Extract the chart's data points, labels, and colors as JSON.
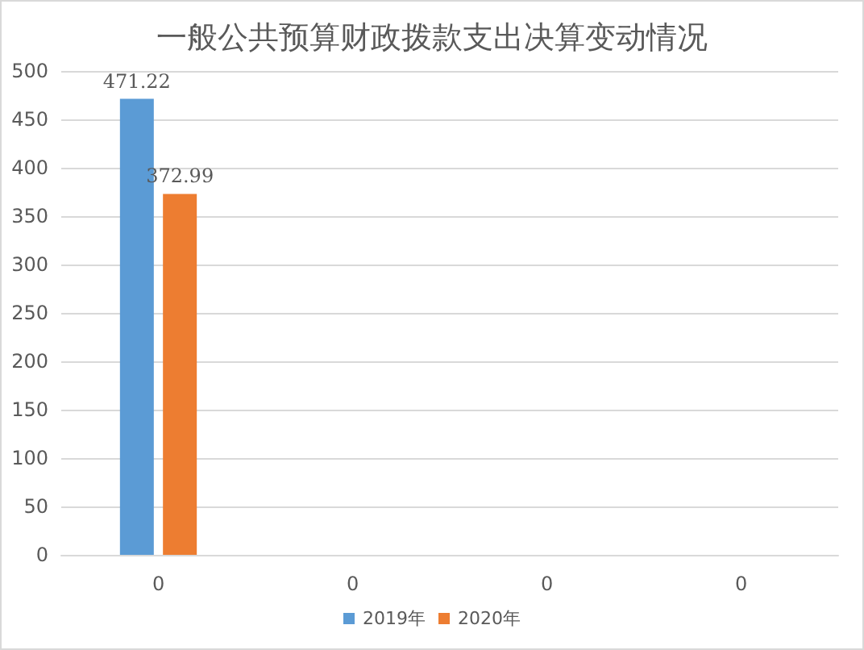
{
  "chart_data": {
    "type": "bar",
    "title": "一般公共预算财政拨款支出决算变动情况",
    "categories": [
      "0",
      "0",
      "0",
      "0"
    ],
    "series": [
      {
        "name": "2019年",
        "color": "#5b9bd5",
        "values": [
          471.22,
          null,
          null,
          null
        ],
        "value_labels": [
          "471.22",
          null,
          null,
          null
        ]
      },
      {
        "name": "2020年",
        "color": "#ed7d31",
        "values": [
          372.99,
          null,
          null,
          null
        ],
        "value_labels": [
          "372.99",
          null,
          null,
          null
        ]
      }
    ],
    "ylim": [
      0,
      500
    ],
    "yticks": [
      0,
      50,
      100,
      150,
      200,
      250,
      300,
      350,
      400,
      450,
      500
    ],
    "grid": "y",
    "legend": "bottom"
  }
}
